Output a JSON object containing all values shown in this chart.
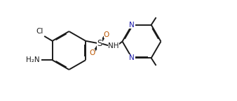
{
  "bg_color": "#ffffff",
  "bond_color": "#1a1a1a",
  "lw": 1.4,
  "dbo": 0.028,
  "fs": 7.5,
  "N_color": "#1a1aaa",
  "O_color": "#bb5500",
  "text_color": "#1a1a1a",
  "fig_width": 3.38,
  "fig_height": 1.45,
  "dpi": 100,
  "xlim": [
    0.0,
    6.8
  ],
  "ylim": [
    -1.0,
    2.8
  ]
}
